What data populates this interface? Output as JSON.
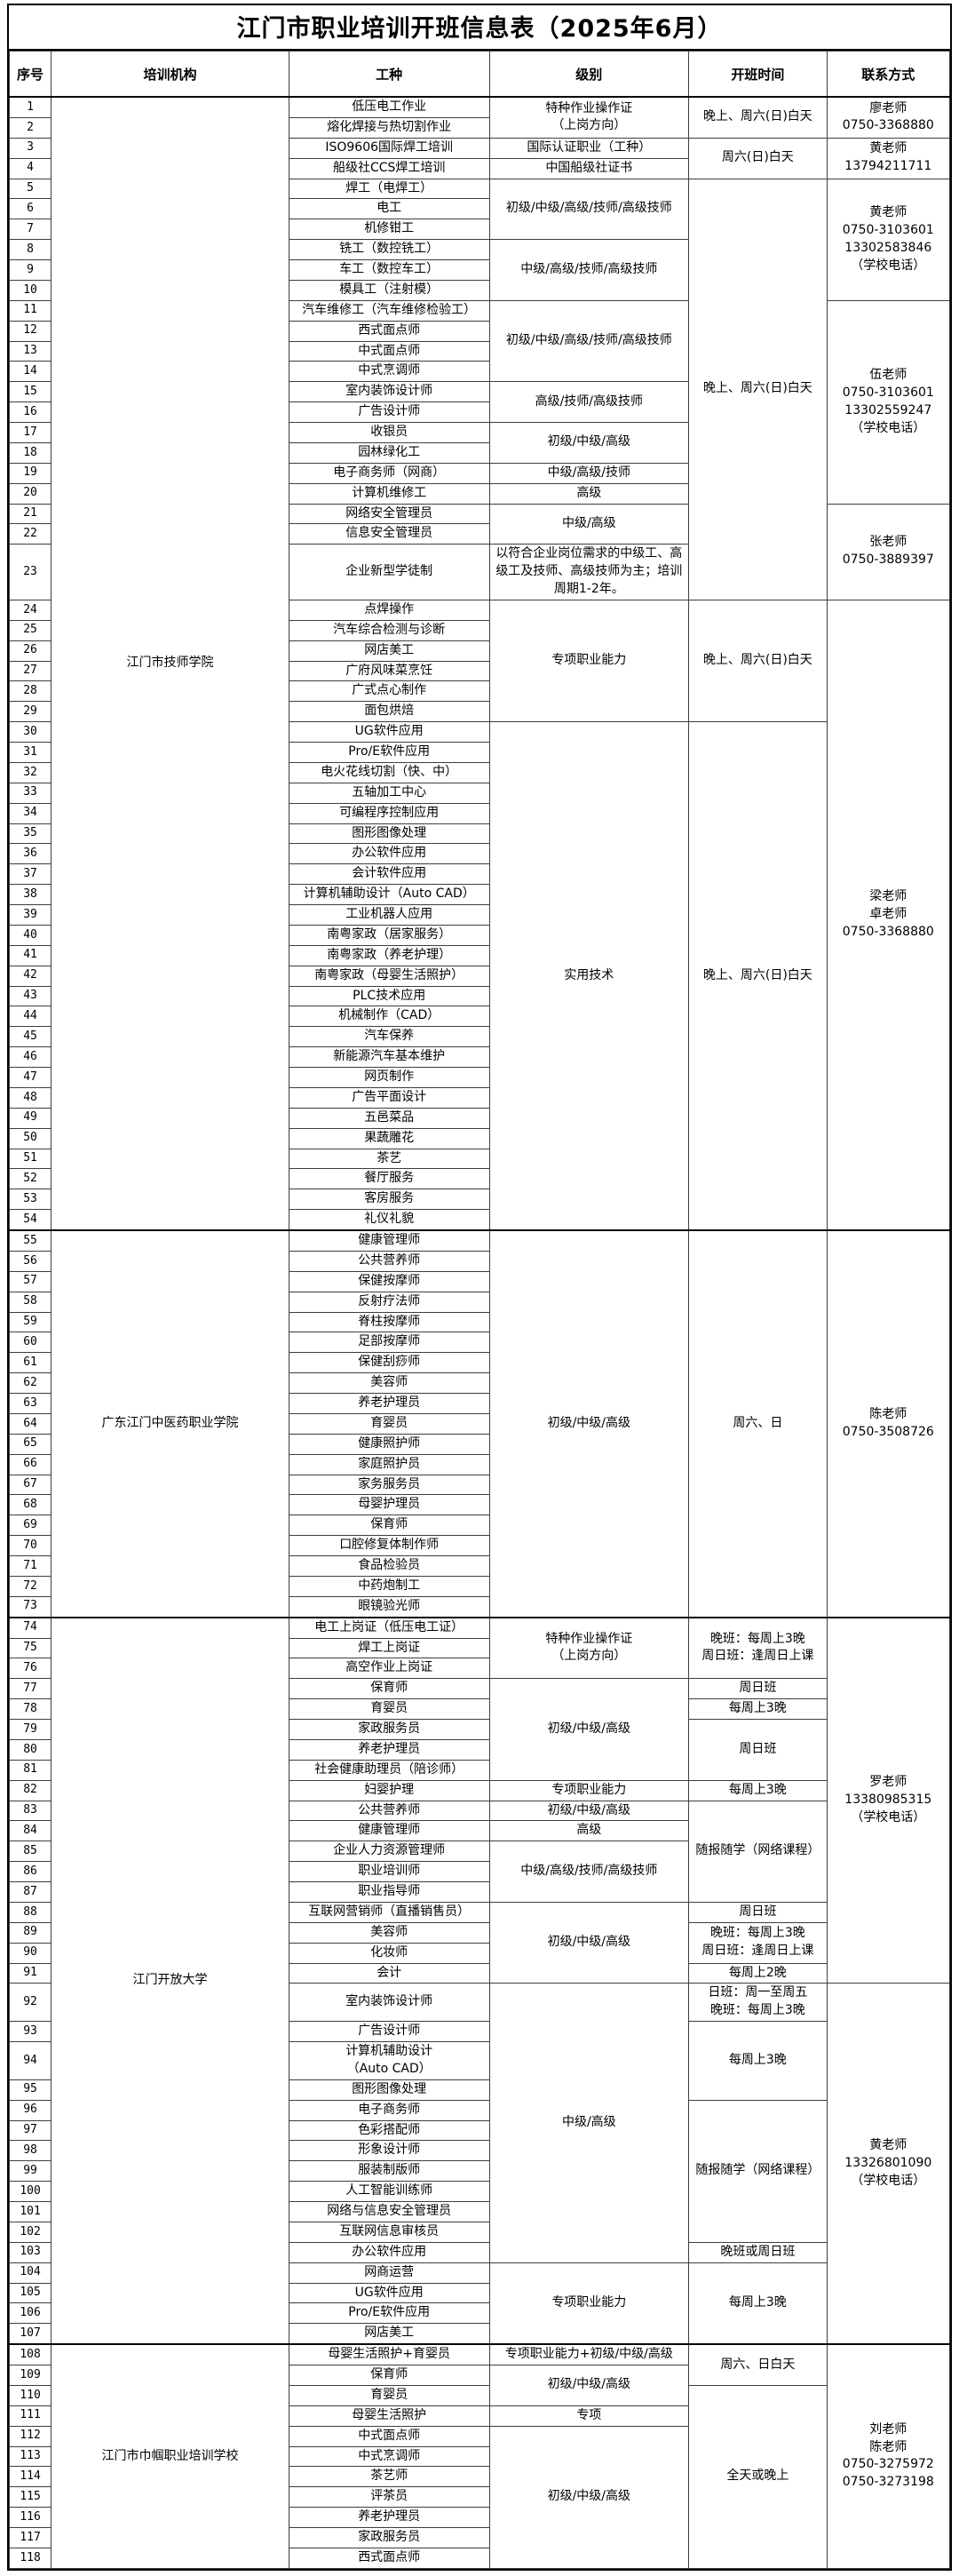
{
  "title": "江门市职业培训开班信息表（2025年6月）",
  "colors": {
    "border": "#000000",
    "grid": "#3d3d3d",
    "background": "#ffffff",
    "text": "#000000"
  },
  "table": {
    "headers": [
      "序号",
      "培训机构",
      "工种",
      "级别",
      "开班时间",
      "联系方式"
    ],
    "institutions": [
      {
        "from": 1,
        "to": 54,
        "name": "江门市技师学院"
      },
      {
        "from": 55,
        "to": 73,
        "name": "广东江门中医药职业学院"
      },
      {
        "from": 74,
        "to": 107,
        "name": "江门开放大学"
      },
      {
        "from": 108,
        "to": 118,
        "name": "江门市巾帼职业培训学校"
      }
    ],
    "jobs": [
      "低压电工作业",
      "熔化焊接与热切割作业",
      "ISO9606国际焊工培训",
      "船级社CCS焊工培训",
      "焊工（电焊工）",
      "电工",
      "机修钳工",
      "铣工（数控铣工）",
      "车工（数控车工）",
      "模具工（注射模）",
      "汽车维修工（汽车维修检验工）",
      "西式面点师",
      "中式面点师",
      "中式烹调师",
      "室内装饰设计师",
      "广告设计师",
      "收银员",
      "园林绿化工",
      "电子商务师（网商）",
      "计算机维修工",
      "网络安全管理员",
      "信息安全管理员",
      "企业新型学徒制",
      "点焊操作",
      "汽车综合检测与诊断",
      "网店美工",
      "广府风味菜烹饪",
      "广式点心制作",
      "面包烘焙",
      "UG软件应用",
      "Pro/E软件应用",
      "电火花线切割（快、中）",
      "五轴加工中心",
      "可编程序控制应用",
      "图形图像处理",
      "办公软件应用",
      "会计软件应用",
      "计算机辅助设计（Auto CAD）",
      "工业机器人应用",
      "南粤家政（居家服务）",
      "南粤家政（养老护理）",
      "南粤家政（母婴生活照护）",
      "PLC技术应用",
      "机械制作（CAD）",
      "汽车保养",
      "新能源汽车基本维护",
      "网页制作",
      "广告平面设计",
      "五邑菜品",
      "果蔬雕花",
      "茶艺",
      "餐厅服务",
      "客房服务",
      "礼仪礼貌",
      "健康管理师",
      "公共营养师",
      "保健按摩师",
      "反射疗法师",
      "脊柱按摩师",
      "足部按摩师",
      "保健刮痧师",
      "美容师",
      "养老护理员",
      "育婴员",
      "健康照护师",
      "家庭照护员",
      "家务服务员",
      "母婴护理员",
      "保育师",
      "口腔修复体制作师",
      "食品检验员",
      "中药炮制工",
      "眼镜验光师",
      "电工上岗证（低压电工证）",
      "焊工上岗证",
      "高空作业上岗证",
      "保育师",
      "育婴员",
      "家政服务员",
      "养老护理员",
      "社会健康助理员（陪诊师）",
      "妇婴护理",
      "公共营养师",
      "健康管理师",
      "企业人力资源管理师",
      "职业培训师",
      "职业指导师",
      "互联网营销师（直播销售员）",
      "美容师",
      "化妆师",
      "会计",
      "室内装饰设计师",
      "广告设计师",
      "计算机辅助设计\n（Auto CAD）",
      "图形图像处理",
      "电子商务师",
      "色彩搭配师",
      "形象设计师",
      "服装制版师",
      "人工智能训练师",
      "网络与信息安全管理员",
      "互联网信息审核员",
      "办公软件应用",
      "网商运营",
      "UG软件应用",
      "Pro/E软件应用",
      "网店美工",
      "母婴生活照护+育婴员",
      "保育师",
      "育婴员",
      "母婴生活照护",
      "中式面点师",
      "中式烹调师",
      "茶艺师",
      "评茶员",
      "养老护理员",
      "家政服务员",
      "西式面点师"
    ],
    "levels": [
      {
        "from": 1,
        "to": 2,
        "lines": [
          "特种作业操作证",
          "（上岗方向）"
        ]
      },
      {
        "from": 3,
        "to": 3,
        "lines": [
          "国际认证职业（工种）"
        ]
      },
      {
        "from": 4,
        "to": 4,
        "lines": [
          "中国船级社证书"
        ]
      },
      {
        "from": 5,
        "to": 7,
        "lines": [
          "初级/中级/高级/技师/高级技师"
        ]
      },
      {
        "from": 8,
        "to": 10,
        "lines": [
          "中级/高级/技师/高级技师"
        ]
      },
      {
        "from": 11,
        "to": 14,
        "lines": [
          "初级/中级/高级/技师/高级技师"
        ]
      },
      {
        "from": 15,
        "to": 16,
        "lines": [
          "高级/技师/高级技师"
        ]
      },
      {
        "from": 17,
        "to": 18,
        "lines": [
          "初级/中级/高级"
        ]
      },
      {
        "from": 19,
        "to": 19,
        "lines": [
          "中级/高级/技师"
        ]
      },
      {
        "from": 20,
        "to": 20,
        "lines": [
          "高级"
        ]
      },
      {
        "from": 21,
        "to": 22,
        "lines": [
          "中级/高级"
        ]
      },
      {
        "from": 23,
        "to": 23,
        "lines": [
          "以符合企业岗位需求的中级工、高级工及技师、高级技师为主；培训周期1-2年。"
        ]
      },
      {
        "from": 24,
        "to": 29,
        "lines": [
          "专项职业能力"
        ]
      },
      {
        "from": 30,
        "to": 54,
        "lines": [
          "实用技术"
        ]
      },
      {
        "from": 55,
        "to": 73,
        "lines": [
          "初级/中级/高级"
        ]
      },
      {
        "from": 74,
        "to": 76,
        "lines": [
          "特种作业操作证",
          "（上岗方向）"
        ]
      },
      {
        "from": 77,
        "to": 81,
        "lines": [
          "初级/中级/高级"
        ]
      },
      {
        "from": 82,
        "to": 82,
        "lines": [
          "专项职业能力"
        ]
      },
      {
        "from": 83,
        "to": 83,
        "lines": [
          "初级/中级/高级"
        ]
      },
      {
        "from": 84,
        "to": 84,
        "lines": [
          "高级"
        ]
      },
      {
        "from": 85,
        "to": 87,
        "lines": [
          "中级/高级/技师/高级技师"
        ]
      },
      {
        "from": 88,
        "to": 91,
        "lines": [
          "初级/中级/高级"
        ]
      },
      {
        "from": 92,
        "to": 103,
        "lines": [
          "中级/高级"
        ]
      },
      {
        "from": 104,
        "to": 107,
        "lines": [
          "专项职业能力"
        ]
      },
      {
        "from": 108,
        "to": 108,
        "lines": [
          "专项职业能力+初级/中级/高级"
        ]
      },
      {
        "from": 109,
        "to": 110,
        "lines": [
          "初级/中级/高级"
        ]
      },
      {
        "from": 111,
        "to": 111,
        "lines": [
          "专项"
        ]
      },
      {
        "from": 112,
        "to": 118,
        "lines": [
          "初级/中级/高级"
        ]
      }
    ],
    "times": [
      {
        "from": 1,
        "to": 2,
        "lines": [
          "晚上、周六(日)白天"
        ]
      },
      {
        "from": 3,
        "to": 4,
        "lines": [
          "周六(日)白天"
        ]
      },
      {
        "from": 5,
        "to": 23,
        "lines": [
          "晚上、周六(日)白天"
        ]
      },
      {
        "from": 24,
        "to": 29,
        "lines": [
          "晚上、周六(日)白天"
        ]
      },
      {
        "from": 30,
        "to": 54,
        "lines": [
          "晚上、周六(日)白天"
        ]
      },
      {
        "from": 55,
        "to": 73,
        "lines": [
          "周六、日"
        ]
      },
      {
        "from": 74,
        "to": 76,
        "lines": [
          "晚班：每周上3晚",
          "周日班：逢周日上课"
        ]
      },
      {
        "from": 77,
        "to": 77,
        "lines": [
          "周日班"
        ]
      },
      {
        "from": 78,
        "to": 78,
        "lines": [
          "每周上3晚"
        ]
      },
      {
        "from": 79,
        "to": 81,
        "lines": [
          "周日班"
        ]
      },
      {
        "from": 82,
        "to": 82,
        "lines": [
          "每周上3晚"
        ]
      },
      {
        "from": 83,
        "to": 87,
        "lines": [
          "随报随学（网络课程）"
        ]
      },
      {
        "from": 88,
        "to": 88,
        "lines": [
          "周日班"
        ]
      },
      {
        "from": 89,
        "to": 90,
        "lines": [
          "晚班：每周上3晚",
          "周日班：逢周日上课"
        ]
      },
      {
        "from": 91,
        "to": 91,
        "lines": [
          "每周上2晚"
        ]
      },
      {
        "from": 92,
        "to": 92,
        "lines": [
          "日班：周一至周五",
          "晚班：每周上3晚"
        ]
      },
      {
        "from": 93,
        "to": 95,
        "lines": [
          "每周上3晚"
        ]
      },
      {
        "from": 96,
        "to": 102,
        "lines": [
          "随报随学（网络课程）"
        ]
      },
      {
        "from": 103,
        "to": 103,
        "lines": [
          "晚班或周日班"
        ]
      },
      {
        "from": 104,
        "to": 107,
        "lines": [
          "每周上3晚"
        ]
      },
      {
        "from": 108,
        "to": 109,
        "lines": [
          "周六、日白天"
        ]
      },
      {
        "from": 110,
        "to": 118,
        "lines": [
          "全天或晚上"
        ]
      }
    ],
    "contacts": [
      {
        "from": 1,
        "to": 2,
        "lines": [
          "廖老师",
          "0750-3368880"
        ]
      },
      {
        "from": 3,
        "to": 4,
        "lines": [
          "黄老师",
          "13794211711"
        ]
      },
      {
        "from": 5,
        "to": 10,
        "lines": [
          "黄老师",
          "0750-3103601",
          "13302583846",
          "（学校电话）"
        ]
      },
      {
        "from": 11,
        "to": 20,
        "lines": [
          "伍老师",
          "0750-3103601",
          "13302559247",
          "（学校电话）"
        ]
      },
      {
        "from": 21,
        "to": 23,
        "lines": [
          "张老师",
          "0750-3889397"
        ]
      },
      {
        "from": 24,
        "to": 54,
        "lines": [
          "梁老师",
          "卓老师",
          "0750-3368880"
        ]
      },
      {
        "from": 55,
        "to": 73,
        "lines": [
          "陈老师",
          "0750-3508726"
        ]
      },
      {
        "from": 74,
        "to": 91,
        "lines": [
          "罗老师",
          "13380985315",
          "（学校电话）"
        ]
      },
      {
        "from": 92,
        "to": 107,
        "lines": [
          "黄老师",
          "13326801090",
          "（学校电话）"
        ]
      },
      {
        "from": 108,
        "to": 118,
        "lines": [
          "刘老师",
          "陈老师",
          "0750-3275972",
          "0750-3273198"
        ]
      }
    ]
  }
}
